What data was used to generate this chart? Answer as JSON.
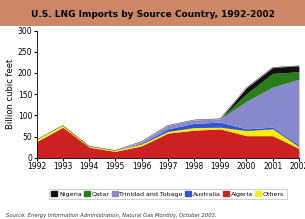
{
  "title": "U.S. LNG Imports by Source Country, 1992-2002",
  "ylabel": "Billion cubic feet",
  "source": "Source: Energy Information Administration, Natural Gas Monthly, October 2003.",
  "years": [
    1992,
    1993,
    1994,
    1995,
    1996,
    1997,
    1998,
    1999,
    2000,
    2001,
    2002
  ],
  "series": {
    "Algeria": [
      38,
      72,
      25,
      15,
      28,
      58,
      65,
      68,
      52,
      52,
      22
    ],
    "Others": [
      4,
      4,
      2,
      2,
      4,
      4,
      6,
      4,
      12,
      16,
      4
    ],
    "Australia": [
      0,
      0,
      0,
      0,
      2,
      6,
      10,
      12,
      4,
      4,
      4
    ],
    "Trinidad and Tobago": [
      0,
      0,
      0,
      0,
      4,
      8,
      8,
      8,
      65,
      95,
      155
    ],
    "Qatar": [
      0,
      0,
      0,
      0,
      0,
      0,
      0,
      0,
      18,
      32,
      18
    ],
    "Nigeria": [
      0,
      0,
      0,
      0,
      0,
      0,
      0,
      0,
      14,
      14,
      14
    ]
  },
  "colors": {
    "Nigeria": "#111111",
    "Qatar": "#2a7d18",
    "Trinidad and Tobago": "#8888cc",
    "Australia": "#3355cc",
    "Algeria": "#cc2222",
    "Others": "#ffee00"
  },
  "ylim": [
    0,
    300
  ],
  "yticks": [
    0,
    50,
    100,
    150,
    200,
    250,
    300
  ],
  "title_bg": "#cc8866",
  "title_fontsize": 6.5,
  "axis_fontsize": 5.5,
  "ylabel_fontsize": 6,
  "legend_fontsize": 4.5,
  "source_fontsize": 3.8,
  "legend_order": [
    "Nigeria",
    "Qatar",
    "Trinidad and Tobago",
    "Australia",
    "Algeria",
    "Others"
  ],
  "stack_order": [
    "Algeria",
    "Others",
    "Australia",
    "Trinidad and Tobago",
    "Qatar",
    "Nigeria"
  ]
}
